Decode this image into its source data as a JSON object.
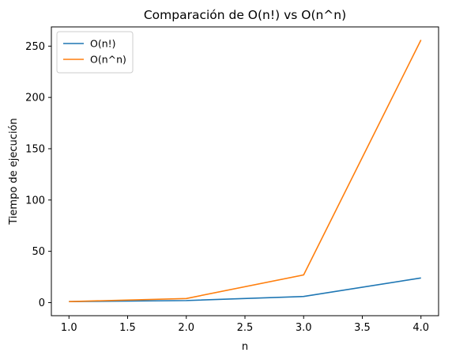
{
  "chart_data": {
    "type": "line",
    "title": "Comparación de O(n!) vs O(n^n)",
    "xlabel": "n",
    "ylabel": "Tiempo de ejecución",
    "x": [
      1,
      2,
      3,
      4
    ],
    "xlim": [
      0.85,
      4.15
    ],
    "ylim": [
      -12.75,
      268.75
    ],
    "xticks": [
      1.0,
      1.5,
      2.0,
      2.5,
      3.0,
      3.5,
      4.0
    ],
    "xtick_labels": [
      "1.0",
      "1.5",
      "2.0",
      "2.5",
      "3.0",
      "3.5",
      "4.0"
    ],
    "yticks": [
      0,
      50,
      100,
      150,
      200,
      250
    ],
    "ytick_labels": [
      "0",
      "50",
      "100",
      "150",
      "200",
      "250"
    ],
    "grid": false,
    "legend_position": "top-left",
    "series": [
      {
        "name": "O(n!)",
        "color": "#1f77b4",
        "values": [
          1,
          2,
          6,
          24
        ]
      },
      {
        "name": "O(n^n)",
        "color": "#ff7f0e",
        "values": [
          1,
          4,
          27,
          256
        ]
      }
    ]
  }
}
